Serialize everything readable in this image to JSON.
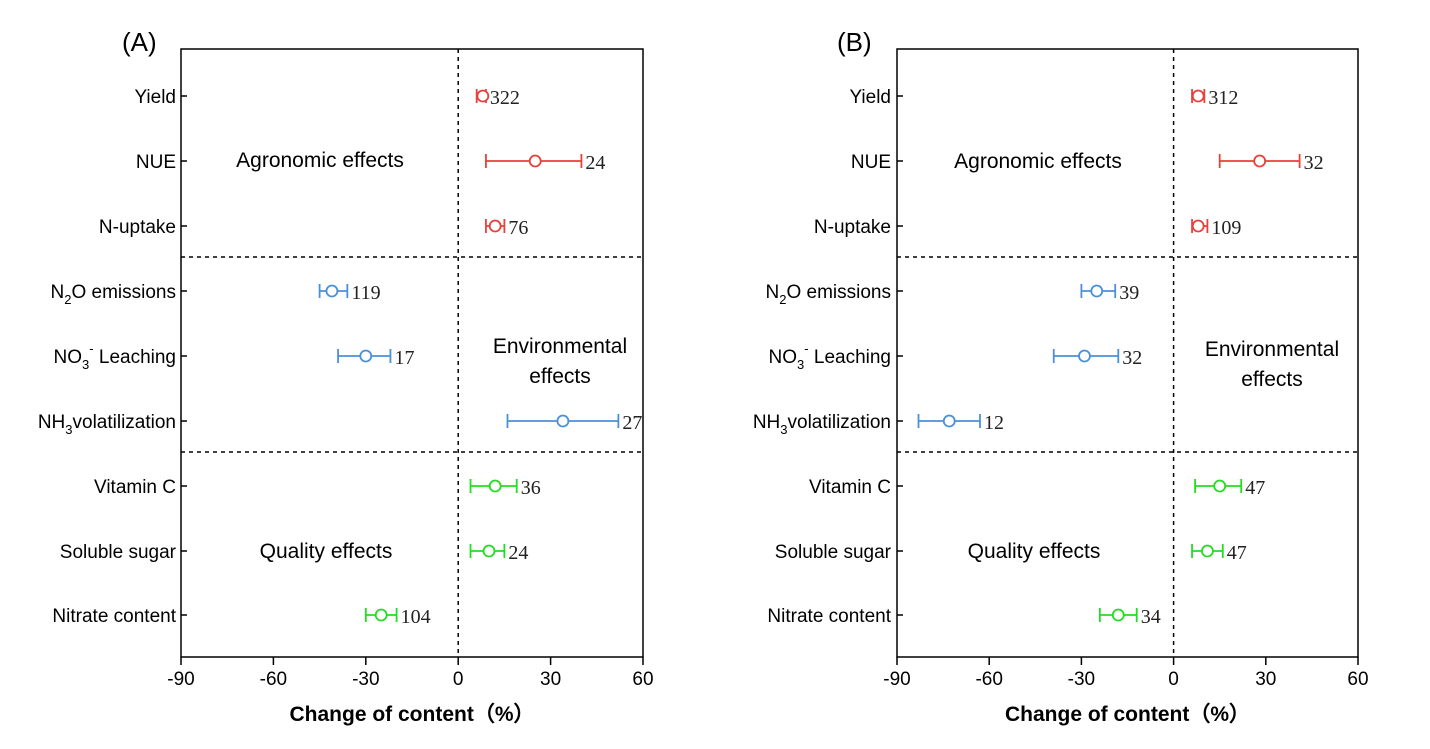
{
  "colors": {
    "agronomic": "#e8413b",
    "environmental": "#4a90d9",
    "quality": "#22dd22",
    "axis": "#000000"
  },
  "chart_data": [
    {
      "type": "forest",
      "panel_label": "(A)",
      "xlabel": "Change of  content（%）",
      "xlim": [
        -90,
        60
      ],
      "xticks": [
        -90,
        -60,
        -30,
        0,
        30,
        60
      ],
      "xtick_labels": [
        "-90",
        "-60",
        "-30",
        "0",
        "30",
        "60"
      ],
      "groups": [
        {
          "name": "Agronomic effects",
          "label_lines": [
            "Agronomic effects"
          ],
          "color_key": "agronomic"
        },
        {
          "name": "Environmental effects",
          "label_lines": [
            "Environmental",
            "effects"
          ],
          "color_key": "environmental"
        },
        {
          "name": "Quality effects",
          "label_lines": [
            "Quality effects"
          ],
          "color_key": "quality"
        }
      ],
      "rows": [
        {
          "label": "Yield",
          "group": 0,
          "mean": 8,
          "ci_low": 6,
          "ci_high": 9,
          "n": "322"
        },
        {
          "label": "NUE",
          "group": 0,
          "mean": 25,
          "ci_low": 9,
          "ci_high": 40,
          "n": "24"
        },
        {
          "label": "N-uptake",
          "group": 0,
          "mean": 12,
          "ci_low": 9,
          "ci_high": 15,
          "n": "76"
        },
        {
          "label_main": "N",
          "label_sub": "2",
          "label_rest": "O emissions",
          "label": "N2O emissions",
          "group": 1,
          "mean": -41,
          "ci_low": -45,
          "ci_high": -36,
          "n": "119"
        },
        {
          "label_main": "NO",
          "label_sub": "3",
          "label_sup": "-",
          "label_rest": " Leaching",
          "label": "NO3- Leaching",
          "group": 1,
          "mean": -30,
          "ci_low": -39,
          "ci_high": -22,
          "n": "17"
        },
        {
          "label_main": "NH",
          "label_sub": "3",
          "label_rest": "volatilization",
          "label": "NH3volatilization",
          "group": 1,
          "mean": 34,
          "ci_low": 16,
          "ci_high": 52,
          "n": "27"
        },
        {
          "label": "Vitamin C",
          "group": 2,
          "mean": 12,
          "ci_low": 4,
          "ci_high": 19,
          "n": "36"
        },
        {
          "label": "Soluble sugar",
          "group": 2,
          "mean": 10,
          "ci_low": 4,
          "ci_high": 15,
          "n": "24"
        },
        {
          "label": "Nitrate content",
          "group": 2,
          "mean": -25,
          "ci_low": -30,
          "ci_high": -20,
          "n": "104"
        }
      ]
    },
    {
      "type": "forest",
      "panel_label": "(B)",
      "xlabel": "Change of  content（%）",
      "xlim": [
        -90,
        60
      ],
      "xticks": [
        -90,
        -60,
        -30,
        0,
        30,
        60
      ],
      "xtick_labels": [
        "-90",
        "-60",
        "-30",
        "0",
        "30",
        "60"
      ],
      "groups": [
        {
          "name": "Agronomic effects",
          "label_lines": [
            "Agronomic effects"
          ],
          "color_key": "agronomic"
        },
        {
          "name": "Environmental effects",
          "label_lines": [
            "Environmental",
            "effects"
          ],
          "color_key": "environmental"
        },
        {
          "name": "Quality effects",
          "label_lines": [
            "Quality effects"
          ],
          "color_key": "quality"
        }
      ],
      "rows": [
        {
          "label": "Yield",
          "group": 0,
          "mean": 8,
          "ci_low": 6,
          "ci_high": 10,
          "n": "312"
        },
        {
          "label": "NUE",
          "group": 0,
          "mean": 28,
          "ci_low": 15,
          "ci_high": 41,
          "n": "32"
        },
        {
          "label": "N-uptake",
          "group": 0,
          "mean": 8,
          "ci_low": 6,
          "ci_high": 11,
          "n": "109"
        },
        {
          "label_main": "N",
          "label_sub": "2",
          "label_rest": "O emissions",
          "label": "N2O emissions",
          "group": 1,
          "mean": -25,
          "ci_low": -30,
          "ci_high": -19,
          "n": "39"
        },
        {
          "label_main": "NO",
          "label_sub": "3",
          "label_sup": "-",
          "label_rest": " Leaching",
          "label": "NO3- Leaching",
          "group": 1,
          "mean": -29,
          "ci_low": -39,
          "ci_high": -18,
          "n": "32"
        },
        {
          "label_main": "NH",
          "label_sub": "3",
          "label_rest": "volatilization",
          "label": "NH3volatilization",
          "group": 1,
          "mean": -73,
          "ci_low": -83,
          "ci_high": -63,
          "n": "12"
        },
        {
          "label": "Vitamin C",
          "group": 2,
          "mean": 15,
          "ci_low": 7,
          "ci_high": 22,
          "n": "47"
        },
        {
          "label": "Soluble sugar",
          "group": 2,
          "mean": 11,
          "ci_low": 6,
          "ci_high": 16,
          "n": "47"
        },
        {
          "label": "Nitrate content",
          "group": 2,
          "mean": -18,
          "ci_low": -24,
          "ci_high": -12,
          "n": "34"
        }
      ]
    }
  ]
}
